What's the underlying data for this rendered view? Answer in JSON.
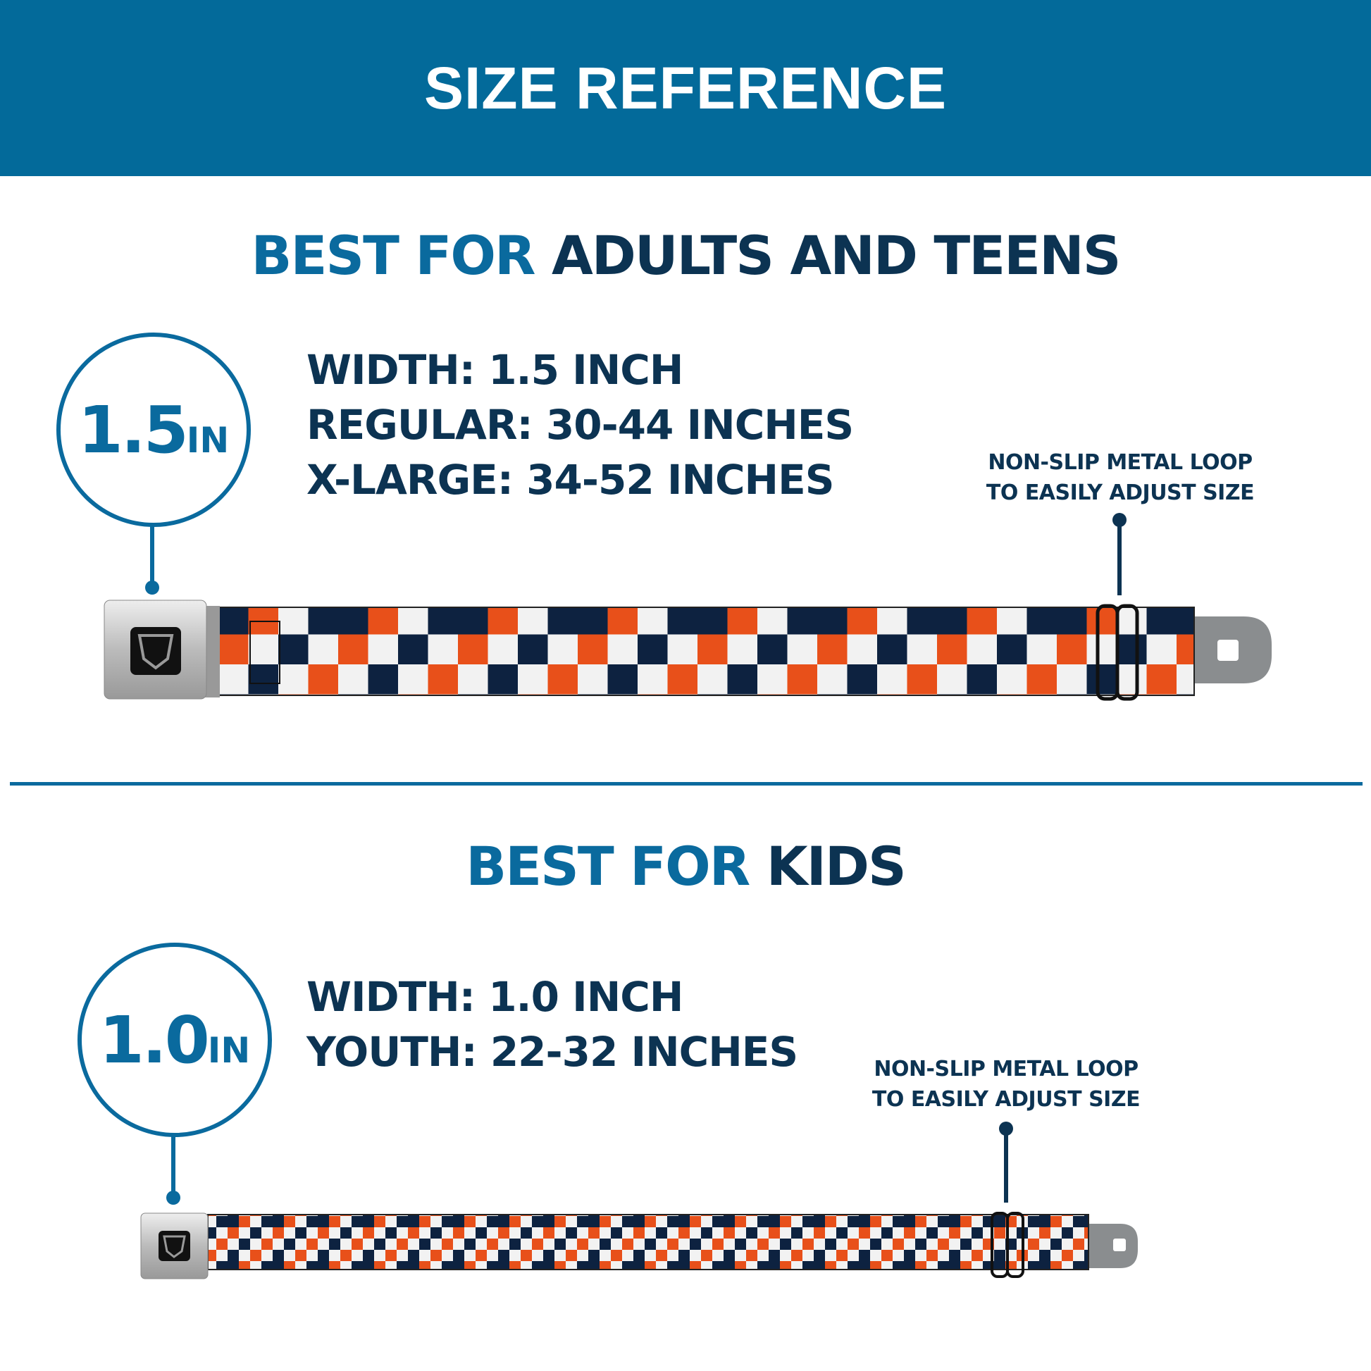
{
  "header": {
    "title": "SIZE REFERENCE"
  },
  "adults": {
    "heading_prefix": "BEST FOR",
    "heading_rest": "ADULTS AND TEENS",
    "badge_number": "1.5",
    "badge_unit": "IN",
    "specs": [
      "WIDTH: 1.5 INCH",
      "REGULAR: 30-44 INCHES",
      "X-LARGE: 34-52 INCHES"
    ],
    "note": [
      "NON-SLIP METAL LOOP",
      "TO EASILY ADJUST SIZE"
    ]
  },
  "kids": {
    "heading_prefix": "BEST FOR",
    "heading_rest": "KIDS",
    "badge_number": "1.0",
    "badge_unit": "IN",
    "specs": [
      "WIDTH: 1.0 INCH",
      "YOUTH: 22-32 INCHES"
    ],
    "note": [
      "NON-SLIP METAL LOOP",
      "TO EASILY ADJUST SIZE"
    ]
  },
  "colors": {
    "brand_blue": "#036a9a",
    "navy": "#0c3352",
    "belt_navy": "#0d2240",
    "belt_orange": "#e8501a",
    "belt_white": "#f2f2f2"
  },
  "icons": [
    "seatbelt-buckle-icon",
    "metal-loop-icon",
    "metal-tab-icon"
  ]
}
